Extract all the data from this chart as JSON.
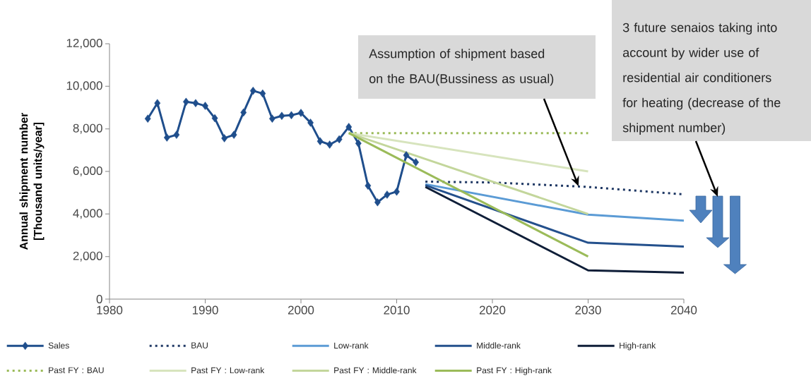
{
  "chart_data": {
    "type": "line",
    "ylabel": "Annual shipment number [Thousand units/year]",
    "xlim": [
      1980,
      2040
    ],
    "xticks": [
      1980,
      1990,
      2000,
      2010,
      2020,
      2030,
      2040
    ],
    "ylim": [
      0,
      12000
    ],
    "yticks": [
      0,
      {
        "value": 2000,
        "label": "2,000"
      },
      {
        "value": 4000,
        "label": "4,000"
      },
      {
        "value": 6000,
        "label": "6,000"
      },
      {
        "value": 8000,
        "label": "8,000"
      },
      {
        "value": 10000,
        "label": "10,000"
      },
      {
        "value": 12000,
        "label": "12,000"
      }
    ],
    "legend": "bottom",
    "series": [
      {
        "name": "Sales",
        "color": "#1f4e8c",
        "marker": "diamond",
        "x": [
          1984,
          1985,
          1986,
          1987,
          1988,
          1989,
          1990,
          1991,
          1992,
          1993,
          1994,
          1995,
          1996,
          1997,
          1998,
          1999,
          2000,
          2001,
          2002,
          2003,
          2004,
          2005,
          2006,
          2007,
          2008,
          2009,
          2010,
          2011,
          2012
        ],
        "values": [
          8480,
          9210,
          7590,
          7720,
          9270,
          9210,
          9080,
          8500,
          7560,
          7720,
          8770,
          9790,
          9660,
          8480,
          8610,
          8640,
          8750,
          8290,
          7420,
          7260,
          7510,
          8090,
          7320,
          5330,
          4550,
          4910,
          5050,
          6760,
          6430
        ]
      },
      {
        "name": "BAU",
        "color": "#1f3864",
        "line_style": "dotted",
        "x": [
          2013,
          2020,
          2030,
          2040
        ],
        "values": [
          5520,
          5480,
          5270,
          4920
        ]
      },
      {
        "name": "Low-rank",
        "color": "#5b9bd5",
        "x": [
          2013,
          2030,
          2040
        ],
        "values": [
          5400,
          3970,
          3690
        ]
      },
      {
        "name": "Middle-rank",
        "color": "#24508c",
        "x": [
          2013,
          2030,
          2040
        ],
        "values": [
          5350,
          2650,
          2470
        ]
      },
      {
        "name": "High-rank",
        "color": "#0f1e38",
        "x": [
          2013,
          2030,
          2040
        ],
        "values": [
          5270,
          1350,
          1240
        ]
      },
      {
        "name": "Past FY : BAU",
        "color": "#9bbb59",
        "line_style": "dotted",
        "x": [
          2005,
          2030
        ],
        "values": [
          7800,
          7800
        ]
      },
      {
        "name": "Past FY : Low-rank",
        "color": "#d7e4bd",
        "x": [
          2005,
          2030
        ],
        "values": [
          7800,
          6000
        ]
      },
      {
        "name": "Past FY : Middle-rank",
        "color": "#c3d69b",
        "x": [
          2005,
          2030
        ],
        "values": [
          7800,
          4000
        ]
      },
      {
        "name": "Past FY : High-rank",
        "color": "#9bbb59",
        "x": [
          2005,
          2030
        ],
        "values": [
          7800,
          2000
        ]
      }
    ],
    "annotations": [
      {
        "text": "Assumption of shipment based on the BAU(Bussiness as usual)",
        "x": 2029,
        "y": 5300
      },
      "3 future senaios taking into account by wider use of residential air conditioners for heating (decrease of the shipment number)"
    ]
  }
}
